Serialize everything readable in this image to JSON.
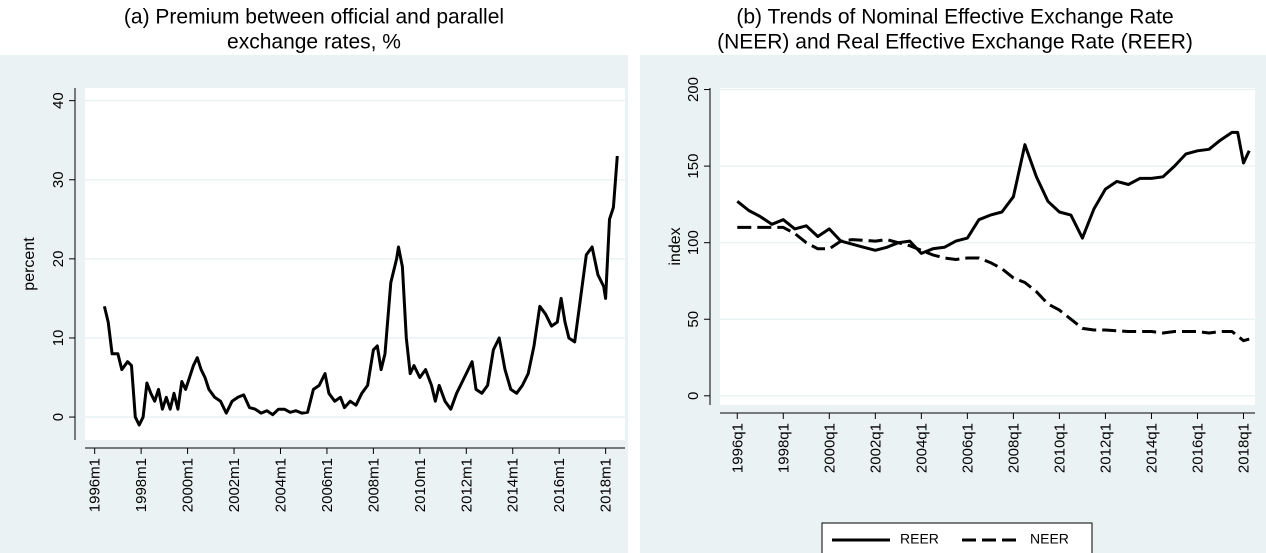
{
  "chart_data": [
    {
      "type": "line",
      "title": [
        "(a) Premium between official and parallel",
        "exchange rates, %"
      ],
      "ylabel": "percent",
      "xlim": [
        "1995m8",
        "2018m11"
      ],
      "ylim": [
        -2.9,
        41.6
      ],
      "xticks": [
        "1996m1",
        "1998m1",
        "2000m1",
        "2002m1",
        "2004m1",
        "2006m1",
        "2008m1",
        "2010m1",
        "2012m1",
        "2014m1",
        "2016m1",
        "2018m1"
      ],
      "yticks": [
        0,
        10,
        20,
        30,
        40
      ],
      "grid": true,
      "series": [
        {
          "color": "#000000",
          "style": "solid",
          "x": [
            "1996m6",
            "1996m8",
            "1996m10",
            "1997m1",
            "1997m3",
            "1997m6",
            "1997m8",
            "1997m10",
            "1997m12",
            "1998m2",
            "1998m4",
            "1998m6",
            "1998m8",
            "1998m10",
            "1998m12",
            "1999m2",
            "1999m4",
            "1999m6",
            "1999m8",
            "1999m10",
            "1999m12",
            "2000m2",
            "2000m4",
            "2000m6",
            "2000m8",
            "2000m10",
            "2000m12",
            "2001m3",
            "2001m6",
            "2001m9",
            "2001m12",
            "2002m3",
            "2002m6",
            "2002m9",
            "2002m12",
            "2003m3",
            "2003m6",
            "2003m9",
            "2003m12",
            "2004m3",
            "2004m6",
            "2004m9",
            "2004m12",
            "2005m3",
            "2005m6",
            "2005m9",
            "2005m12",
            "2006m2",
            "2006m5",
            "2006m8",
            "2006m10",
            "2007m1",
            "2007m4",
            "2007m7",
            "2007m10",
            "2008m1",
            "2008m3",
            "2008m5",
            "2008m7",
            "2008m10",
            "2009m1",
            "2009m2",
            "2009m4",
            "2009m6",
            "2009m8",
            "2009m10",
            "2010m1",
            "2010m4",
            "2010m7",
            "2010m9",
            "2010m11",
            "2011m2",
            "2011m5",
            "2011m8",
            "2011m11",
            "2012m2",
            "2012m4",
            "2012m6",
            "2012m9",
            "2012m12",
            "2013m3",
            "2013m6",
            "2013m9",
            "2013m12",
            "2014m3",
            "2014m6",
            "2014m9",
            "2014m12",
            "2015m3",
            "2015m6",
            "2015m9",
            "2015m12",
            "2016m2",
            "2016m4",
            "2016m6",
            "2016m9",
            "2016m12",
            "2017m3",
            "2017m6",
            "2017m9",
            "2017m12",
            "2018m1",
            "2018m3",
            "2018m5",
            "2018m7"
          ],
          "values": [
            14,
            12,
            8,
            8,
            6,
            7,
            6.5,
            0,
            -1,
            0,
            4.3,
            3,
            2,
            3.5,
            1,
            2.5,
            1,
            3,
            1,
            4.5,
            3.5,
            5,
            6.5,
            7.5,
            6,
            5,
            3.5,
            2.5,
            2,
            0.5,
            2,
            2.5,
            2.8,
            1.2,
            1,
            0.5,
            0.8,
            0.3,
            1,
            1,
            0.6,
            0.8,
            0.5,
            0.6,
            3.5,
            4,
            5.5,
            3,
            2,
            2.5,
            1.2,
            2,
            1.5,
            3,
            4,
            8.5,
            9,
            6,
            8,
            17,
            20,
            21.5,
            19,
            10,
            5.5,
            6.5,
            5,
            6,
            4,
            2,
            4,
            2,
            1,
            3,
            4.5,
            6,
            7,
            3.5,
            3,
            4,
            8.5,
            10,
            6,
            3.5,
            3,
            4,
            5.5,
            9,
            14,
            13,
            11.5,
            12,
            15,
            12,
            10,
            9.5,
            15,
            20.5,
            21.5,
            18,
            16.5,
            15,
            25,
            26.5,
            33
          ]
        }
      ]
    },
    {
      "type": "line",
      "title": [
        "(b) Trends of Nominal Effective Exchange Rate",
        "(NEER) and Real Effective Exchange Rate (REER)"
      ],
      "ylabel": "index",
      "xlim": [
        "1995q2",
        "2018q3"
      ],
      "ylim": [
        -6,
        201
      ],
      "xticks": [
        "1996q1",
        "1998q1",
        "2000q1",
        "2002q1",
        "2004q1",
        "2006q1",
        "2008q1",
        "2010q1",
        "2012q1",
        "2014q1",
        "2016q1",
        "2018q1"
      ],
      "yticks": [
        0,
        50,
        100,
        150,
        200
      ],
      "grid": true,
      "legend": "bottom",
      "series": [
        {
          "name": "REER",
          "color": "#000000",
          "style": "solid",
          "x": [
            "1996q1",
            "1996q3",
            "1997q1",
            "1997q3",
            "1998q1",
            "1998q3",
            "1999q1",
            "1999q3",
            "2000q1",
            "2000q3",
            "2001q1",
            "2001q3",
            "2002q1",
            "2002q3",
            "2003q1",
            "2003q3",
            "2004q1",
            "2004q3",
            "2005q1",
            "2005q3",
            "2006q1",
            "2006q3",
            "2007q1",
            "2007q3",
            "2008q1",
            "2008q3",
            "2009q1",
            "2009q3",
            "2010q1",
            "2010q3",
            "2011q1",
            "2011q3",
            "2012q1",
            "2012q3",
            "2013q1",
            "2013q3",
            "2014q1",
            "2014q3",
            "2015q1",
            "2015q3",
            "2016q1",
            "2016q3",
            "2017q1",
            "2017q3",
            "2017q4",
            "2018q1",
            "2018q2"
          ],
          "values": [
            127,
            121,
            117,
            112,
            115,
            109,
            111,
            104,
            109,
            101,
            99,
            97,
            95,
            97,
            100,
            101,
            93,
            96,
            97,
            101,
            103,
            115,
            118,
            120,
            130,
            164,
            143,
            127,
            120,
            118,
            103,
            122,
            135,
            140,
            138,
            142,
            142,
            143,
            150,
            158,
            160,
            161,
            167,
            172,
            172,
            152,
            160
          ]
        },
        {
          "name": "NEER",
          "color": "#000000",
          "style": "dashed",
          "x": [
            "1996q1",
            "1997q1",
            "1998q1",
            "1998q3",
            "1999q1",
            "1999q3",
            "2000q1",
            "2000q3",
            "2001q1",
            "2002q1",
            "2002q3",
            "2003q1",
            "2003q3",
            "2004q1",
            "2004q3",
            "2005q1",
            "2005q3",
            "2006q1",
            "2006q3",
            "2007q1",
            "2007q3",
            "2008q1",
            "2008q3",
            "2009q1",
            "2009q3",
            "2010q1",
            "2010q3",
            "2011q1",
            "2011q3",
            "2012q1",
            "2013q1",
            "2014q1",
            "2014q3",
            "2015q1",
            "2016q1",
            "2016q3",
            "2017q1",
            "2017q3",
            "2018q1",
            "2018q2"
          ],
          "values": [
            110,
            110,
            110,
            106,
            100,
            96,
            96,
            101,
            102,
            101,
            102,
            100,
            98,
            95,
            92,
            90,
            89,
            90,
            90,
            87,
            83,
            77,
            74,
            68,
            60,
            56,
            50,
            44,
            43,
            43,
            42,
            42,
            41,
            42,
            42,
            41,
            42,
            42,
            36,
            37
          ]
        }
      ]
    }
  ]
}
